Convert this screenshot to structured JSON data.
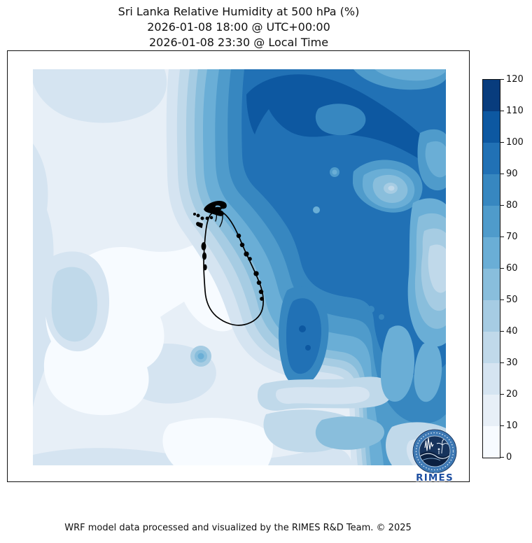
{
  "figure": {
    "title_line1": "Sri Lanka Relative Humidity at 500 hPa (%)",
    "title_line2": "2026-01-08 18:00 @ UTC+00:00",
    "title_line3": "2026-01-08 23:30 @ Local Time",
    "footer": "WRF model data processed and visualized by the RIMES R&D Team. © 2025"
  },
  "colorbar": {
    "min": 0,
    "max": 120,
    "tick_step": 10,
    "tick_labels_top_to_bottom": [
      "120",
      "110",
      "100",
      "90",
      "80",
      "70",
      "60",
      "50",
      "40",
      "30",
      "20",
      "10",
      "0"
    ],
    "colors_low_to_high": [
      "#f7fbff",
      "#e7eff7",
      "#d5e4f1",
      "#c0d9ea",
      "#a6cce3",
      "#89bedc",
      "#6aaed6",
      "#4f9bcb",
      "#3787c0",
      "#2171b5",
      "#0d58a1",
      "#083c7d"
    ]
  },
  "map": {
    "coastline": "Sri Lanka",
    "coastline_color": "#000000"
  },
  "logo": {
    "label": "RIMES",
    "ring_color": "#3d78b3",
    "disc_color": "#16335c",
    "text_color": "#1e4fa1"
  },
  "chart_data": {
    "type": "heatmap",
    "title": "Sri Lanka Relative Humidity at 500 hPa (%)",
    "valid_time_utc": "2026-01-08 18:00 @ UTC+00:00",
    "valid_time_local": "2026-01-08 23:30 @ Local Time",
    "variable": "Relative Humidity",
    "units": "%",
    "pressure_level": "500 hPa",
    "model": "WRF",
    "colormap": "Blues",
    "contour_levels": [
      0,
      10,
      20,
      30,
      40,
      50,
      60,
      70,
      80,
      90,
      100,
      110,
      120
    ],
    "colorbar_ticks": [
      0,
      10,
      20,
      30,
      40,
      50,
      60,
      70,
      80,
      90,
      100,
      110,
      120
    ],
    "legend_position": "right",
    "grid": false,
    "region": "Sri Lanka and surrounding ocean",
    "overlay": "Sri Lanka coastline outline (black)",
    "field_estimate": {
      "description": "Approximate RH (%) sampled on an 8x8 grid over the map, rows north to south, columns west to east",
      "values": [
        [
          15,
          15,
          18,
          40,
          95,
          105,
          95,
          92
        ],
        [
          15,
          18,
          22,
          65,
          95,
          95,
          105,
          70
        ],
        [
          18,
          22,
          15,
          80,
          95,
          65,
          90,
          55
        ],
        [
          22,
          12,
          8,
          55,
          90,
          95,
          85,
          40
        ],
        [
          20,
          32,
          5,
          18,
          85,
          88,
          75,
          50
        ],
        [
          15,
          8,
          12,
          28,
          70,
          78,
          68,
          65
        ],
        [
          12,
          10,
          22,
          38,
          55,
          72,
          58,
          52
        ],
        [
          18,
          25,
          28,
          22,
          35,
          48,
          55,
          40
        ]
      ]
    },
    "pattern_summary": "Very moist air (90-110%) over the northeast quadrant sweeping as a comma down the eastern side; dry air (0-30%) to the west and southwest of Sri Lanka; the island sits on the sharp moisture gradient."
  }
}
